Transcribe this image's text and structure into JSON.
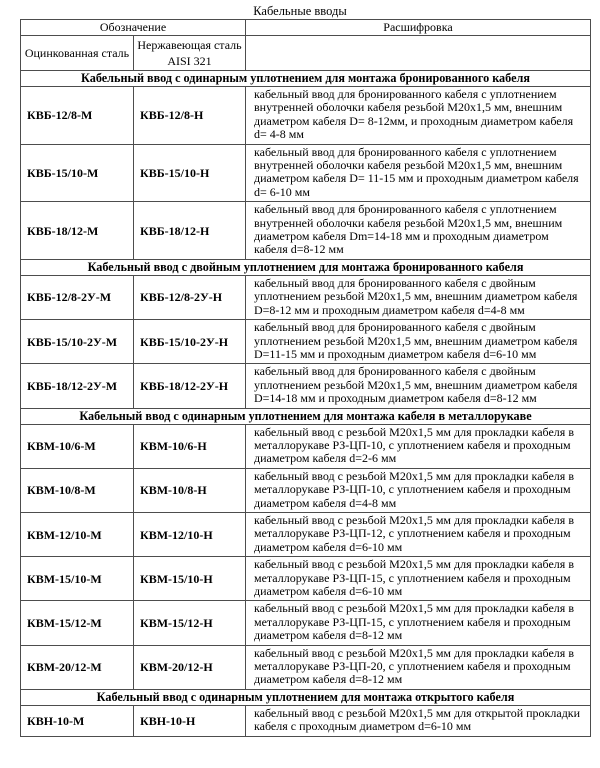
{
  "title": "Кабельные вводы",
  "table": {
    "header": {
      "designation": "Обозначение",
      "decoding": "Расшифровка",
      "galvanized": "Оцинкованная сталь",
      "stainless": "Нержавеющая сталь AISI 321"
    },
    "sections": [
      {
        "title": "Кабельный ввод с одинарным уплотнением для монтажа бронированного кабеля",
        "rows": [
          {
            "galvanized": "КВБ-12/8-М",
            "stainless": "КВБ-12/8-Н",
            "description": "кабельный ввод для бронированного кабеля с уплотнением внутренней оболочки кабеля резьбой М20х1,5 мм, внешним диаметром кабеля D= 8-12мм, и проходным диаметром кабеля d= 4-8 мм"
          },
          {
            "galvanized": "КВБ-15/10-М",
            "stainless": "КВБ-15/10-Н",
            "description": "кабельный ввод для бронированного кабеля с уплотнением внутренней оболочки кабеля резьбой М20х1,5 мм, внешним диаметром кабеля D= 11-15 мм и проходным диаметром кабеля d= 6-10 мм"
          },
          {
            "galvanized": "КВБ-18/12-М",
            "stainless": "КВБ-18/12-Н",
            "description": "кабельный ввод для бронированного кабеля с уплотнением внутренней оболочки кабеля резьбой М20х1,5 мм, внешним диаметром кабеля Dm=14-18 мм и проходным диаметром кабеля d=8-12 мм"
          }
        ]
      },
      {
        "title": "Кабельный ввод с двойным уплотнением для монтажа бронированного кабеля",
        "rows": [
          {
            "galvanized": "КВБ-12/8-2У-М",
            "stainless": "КВБ-12/8-2У-Н",
            "description": "кабельный ввод для бронированного кабеля с двойным уплотнением резьбой М20х1,5 мм, внешним диаметром кабеля D=8-12 мм и проходным диаметром кабеля d=4-8 мм"
          },
          {
            "galvanized": "КВБ-15/10-2У-М",
            "stainless": "КВБ-15/10-2У-Н",
            "description": "кабельный ввод для бронированного кабеля с двойным уплотнением резьбой М20х1,5 мм, внешним диаметром кабеля D=11-15 мм и проходным диаметром кабеля d=6-10 мм"
          },
          {
            "galvanized": "КВБ-18/12-2У-М",
            "stainless": "КВБ-18/12-2У-Н",
            "description": "кабельный ввод для бронированного кабеля с двойным уплотнением резьбой М20х1,5 мм, внешним диаметром кабеля D=14-18 мм и проходным диаметром кабеля d=8-12 мм"
          }
        ]
      },
      {
        "title": "Кабельный ввод с одинарным уплотнением для монтажа кабеля в металлорукаве",
        "rows": [
          {
            "galvanized": "КВМ-10/6-М",
            "stainless": "КВМ-10/6-Н",
            "description": "кабельный ввод с резьбой М20х1,5 мм для прокладки кабеля в металлорукаве РЗ-ЦП-10, с уплотнением кабеля и проходным диаметром кабеля d=2-6 мм"
          },
          {
            "galvanized": "КВМ-10/8-М",
            "stainless": "КВМ-10/8-Н",
            "description": "кабельный ввод с резьбой М20х1,5 мм для прокладки кабеля в металлорукаве РЗ-ЦП-10, с уплотнением кабеля и проходным диаметром кабеля d=4-8 мм"
          },
          {
            "galvanized": "КВМ-12/10-М",
            "stainless": "КВМ-12/10-Н",
            "description": "кабельный ввод с резьбой М20х1,5 мм для прокладки кабеля в металлорукаве РЗ-ЦП-12, с уплотнением кабеля и проходным диаметром кабеля d=6-10 мм"
          },
          {
            "galvanized": "КВМ-15/10-М",
            "stainless": "КВМ-15/10-Н",
            "description": "кабельный ввод с резьбой М20х1,5 мм для прокладки кабеля в металлорукаве РЗ-ЦП-15, с уплотнением кабеля и проходным диаметром кабеля d=6-10 мм"
          },
          {
            "galvanized": "КВМ-15/12-М",
            "stainless": "КВМ-15/12-Н",
            "description": "кабельный ввод с резьбой М20х1,5 мм для прокладки кабеля в металлорукаве РЗ-ЦП-15, с уплотнением кабеля и проходным диаметром кабеля d=8-12 мм"
          },
          {
            "galvanized": "КВМ-20/12-М",
            "stainless": "КВМ-20/12-Н",
            "description": "кабельный ввод с резьбой М20х1,5 мм для прокладки кабеля в металлорукаве РЗ-ЦП-20, с уплотнением кабеля и проходным диаметром кабеля d=8-12 мм"
          }
        ]
      },
      {
        "title": "Кабельный ввод с одинарным уплотнением для монтажа открытого кабеля",
        "rows": [
          {
            "galvanized": "КВН-10-М",
            "stainless": "КВН-10-Н",
            "description": "кабельный ввод с резьбой М20х1,5 мм для открытой прокладки кабеля с проходным диаметром d=6-10 мм"
          }
        ]
      }
    ]
  }
}
